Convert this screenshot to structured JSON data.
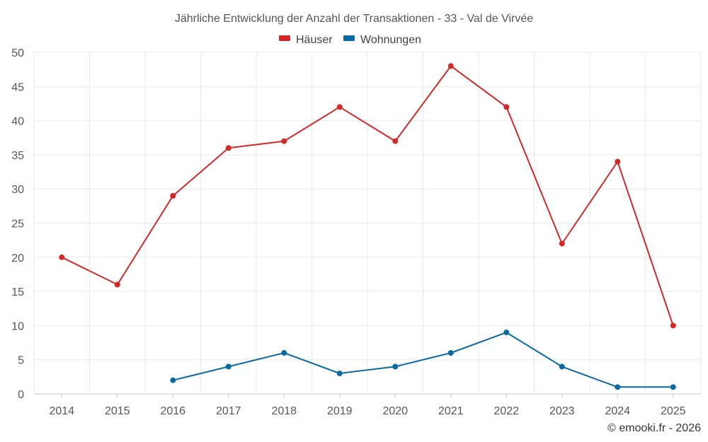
{
  "chart_data": {
    "type": "line",
    "title": "Jährliche Entwicklung der Anzahl der Transaktionen - 33 - Val de Virvée",
    "categories": [
      "2014",
      "2015",
      "2016",
      "2017",
      "2018",
      "2019",
      "2020",
      "2021",
      "2022",
      "2023",
      "2024",
      "2025"
    ],
    "series": [
      {
        "name": "Häuser",
        "color": "#d62728",
        "values": [
          20,
          16,
          29,
          36,
          37,
          42,
          37,
          48,
          42,
          22,
          34,
          10
        ]
      },
      {
        "name": "Wohnungen",
        "color": "#0b6aa2",
        "values": [
          null,
          null,
          2,
          4,
          6,
          3,
          4,
          6,
          9,
          4,
          1,
          1
        ]
      }
    ],
    "ylim": [
      0,
      50
    ],
    "yticks": [
      0,
      5,
      10,
      15,
      20,
      25,
      30,
      35,
      40,
      45,
      50
    ],
    "xlabel": "",
    "ylabel": "",
    "grid": true,
    "legend": "top-center"
  },
  "credit": "© emooki.fr - 2026"
}
